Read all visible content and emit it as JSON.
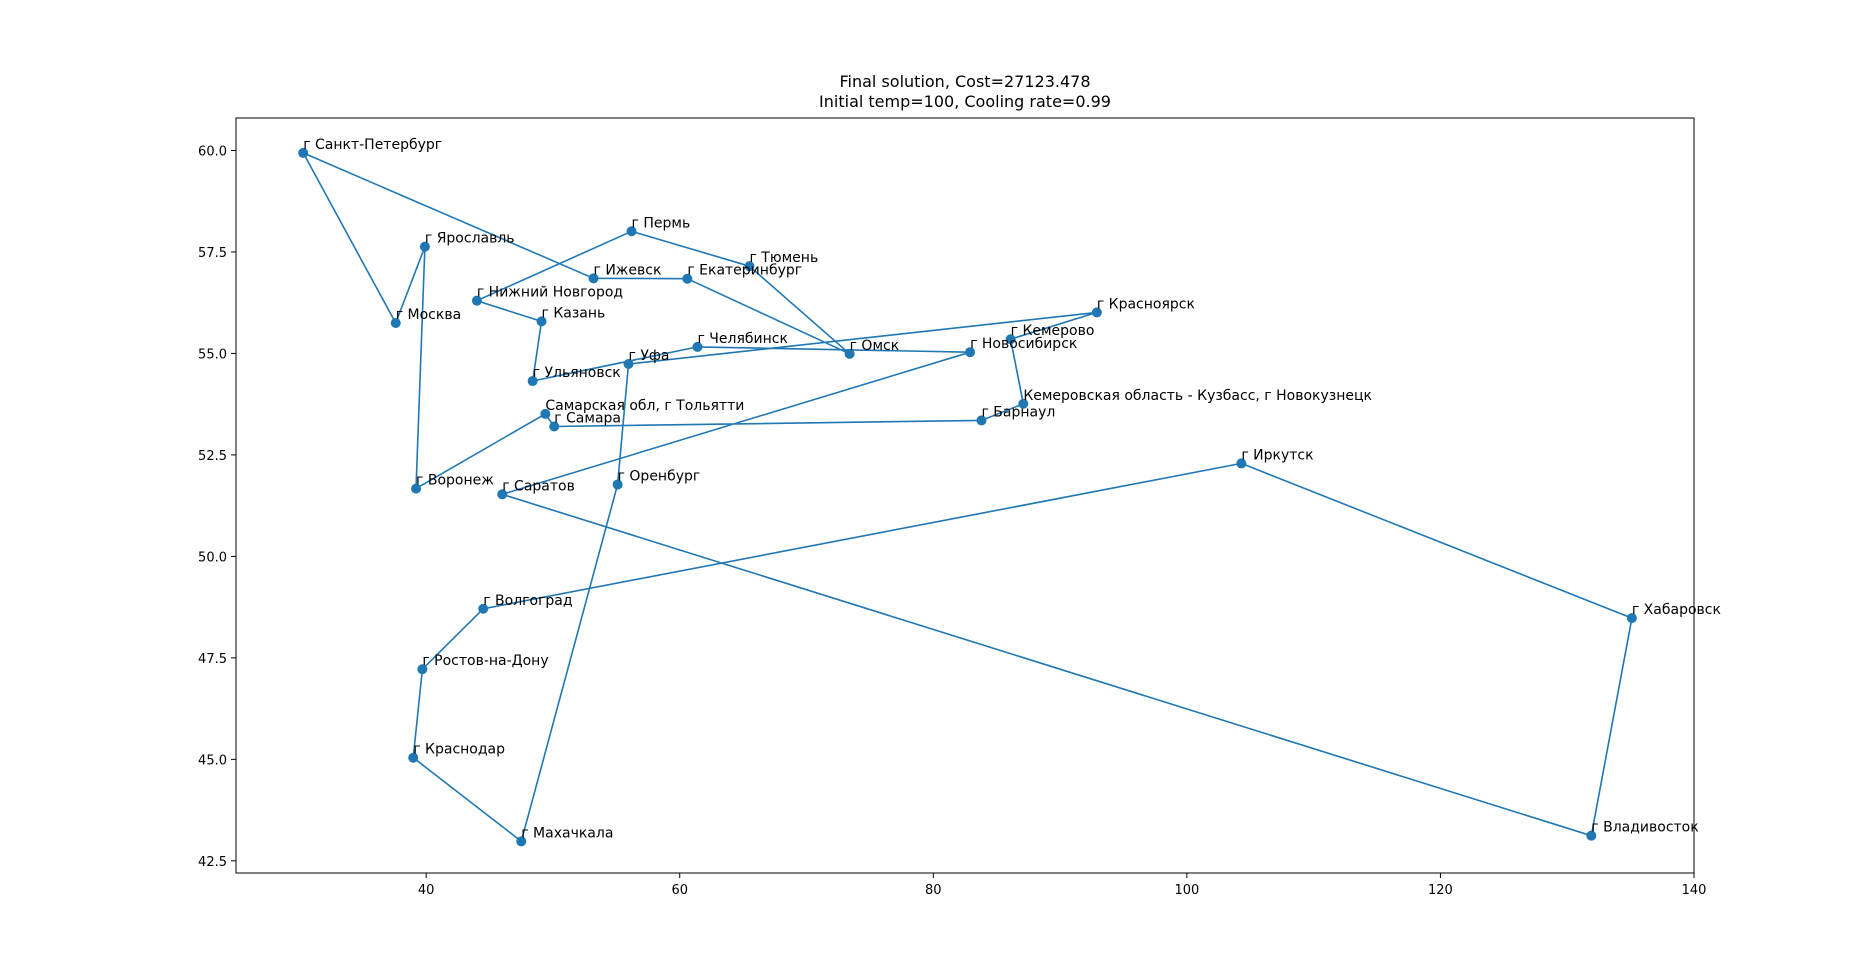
{
  "chart_data": {
    "type": "scatter",
    "title": "Final solution, Cost=27123.478",
    "subtitle": "Initial temp=100, Cooling rate=0.99",
    "xlabel": "",
    "ylabel": "",
    "xlim": [
      25,
      140
    ],
    "ylim": [
      42.2,
      60.8
    ],
    "xticks": [
      "40",
      "60",
      "80",
      "100",
      "120",
      "140"
    ],
    "yticks": [
      "42.5",
      "45.0",
      "47.5",
      "50.0",
      "52.5",
      "55.0",
      "57.5",
      "60.0"
    ],
    "grid": false,
    "color": "#1f77b4",
    "points": [
      {
        "name": "г Санкт-Петербург",
        "x": 30.3,
        "y": 59.94
      },
      {
        "name": "г Москва",
        "x": 37.6,
        "y": 55.75
      },
      {
        "name": "г Ярославль",
        "x": 39.9,
        "y": 57.63
      },
      {
        "name": "г Воронеж",
        "x": 39.2,
        "y": 51.67
      },
      {
        "name": "Самарская обл, г Тольятти",
        "x": 49.4,
        "y": 53.51
      },
      {
        "name": "г Самара",
        "x": 50.1,
        "y": 53.2
      },
      {
        "name": "г Барнаул",
        "x": 83.8,
        "y": 53.35
      },
      {
        "name": "Кемеровская область - Кузбасс, г Новокузнецк",
        "x": 87.1,
        "y": 53.76
      },
      {
        "name": "г Кемерово",
        "x": 86.1,
        "y": 55.35
      },
      {
        "name": "г Красноярск",
        "x": 92.9,
        "y": 56.01
      },
      {
        "name": "г Уфа",
        "x": 55.96,
        "y": 54.74
      },
      {
        "name": "г Оренбург",
        "x": 55.1,
        "y": 51.77
      },
      {
        "name": "г Махачкала",
        "x": 47.5,
        "y": 42.98
      },
      {
        "name": "г Краснодар",
        "x": 38.98,
        "y": 45.04
      },
      {
        "name": "г Ростов-на-Дону",
        "x": 39.7,
        "y": 47.22
      },
      {
        "name": "г Волгоград",
        "x": 44.5,
        "y": 48.71
      },
      {
        "name": "г Иркутск",
        "x": 104.3,
        "y": 52.29
      },
      {
        "name": "г Хабаровск",
        "x": 135.1,
        "y": 48.48
      },
      {
        "name": "г Владивосток",
        "x": 131.9,
        "y": 43.12
      },
      {
        "name": "г Саратов",
        "x": 46.0,
        "y": 51.53
      },
      {
        "name": "г Новосибирск",
        "x": 82.9,
        "y": 55.03
      },
      {
        "name": "г Челябинск",
        "x": 61.4,
        "y": 55.16
      },
      {
        "name": "г Ульяновск",
        "x": 48.4,
        "y": 54.32
      },
      {
        "name": "г Казань",
        "x": 49.1,
        "y": 55.79
      },
      {
        "name": "г Нижний Новгород",
        "x": 44.0,
        "y": 56.3
      },
      {
        "name": "г Пермь",
        "x": 56.2,
        "y": 58.01
      },
      {
        "name": "г Тюмень",
        "x": 65.5,
        "y": 57.15
      },
      {
        "name": "г Омск",
        "x": 73.4,
        "y": 54.99
      },
      {
        "name": "г Екатеринбург",
        "x": 60.6,
        "y": 56.84
      },
      {
        "name": "г Ижевск",
        "x": 53.2,
        "y": 56.85
      }
    ]
  }
}
